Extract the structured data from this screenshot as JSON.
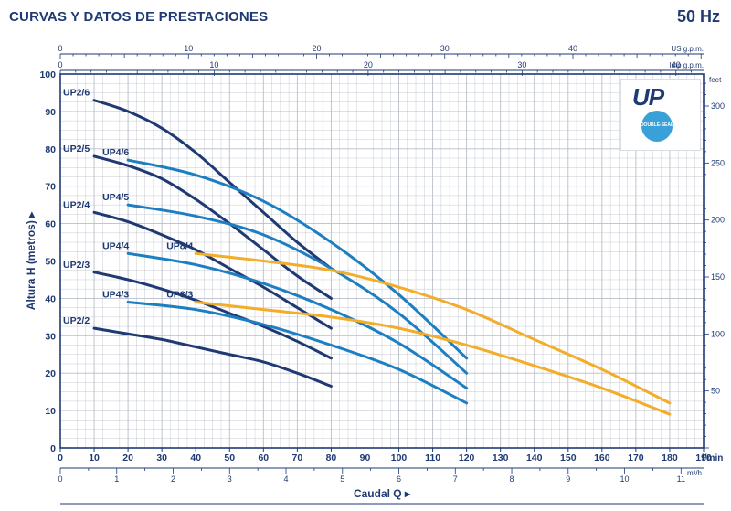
{
  "header": {
    "title": "CURVAS Y DATOS DE PRESTACIONES",
    "frequency": "50 Hz"
  },
  "logo": {
    "brand": "UP",
    "badge": "DOUBLE-SEAL"
  },
  "chart_data": {
    "type": "line",
    "xlabel": "Caudal Q",
    "ylabel": "Altura H (metros)",
    "xlim": [
      0,
      190
    ],
    "ylim": [
      0,
      100
    ],
    "x_ticks": [
      0,
      10,
      20,
      30,
      40,
      50,
      60,
      70,
      80,
      90,
      100,
      110,
      120,
      130,
      140,
      150,
      160,
      170,
      180,
      190
    ],
    "x_unit": "l/min",
    "y_ticks": [
      10,
      20,
      30,
      40,
      50,
      60,
      70,
      80,
      90,
      100
    ],
    "secondary_axes": {
      "usgpm": {
        "unit": "US g.p.m.",
        "ticks": [
          0,
          10,
          20,
          30,
          40
        ]
      },
      "impgpm": {
        "unit": "Imp g.p.m.",
        "ticks": [
          0,
          10,
          20,
          30,
          40
        ]
      },
      "m3h": {
        "unit": "m³/h",
        "ticks": [
          0,
          1,
          2,
          3,
          4,
          5,
          6,
          7,
          8,
          9,
          10,
          11
        ]
      },
      "feet": {
        "unit": "feet",
        "ticks": [
          50,
          100,
          150,
          200,
          250,
          300
        ]
      }
    },
    "colors": {
      "UP2": "#1f3a73",
      "UP4": "#1d7fc1",
      "UP8": "#f2ad2a",
      "axis": "#1f3a73",
      "grid": "#b9bec9"
    },
    "series": [
      {
        "name": "UP2/6",
        "family": "UP2",
        "x": [
          10,
          20,
          30,
          40,
          50,
          60,
          70,
          80
        ],
        "y": [
          93,
          90,
          85.5,
          79,
          71,
          63,
          55,
          48
        ]
      },
      {
        "name": "UP2/5",
        "family": "UP2",
        "x": [
          10,
          20,
          30,
          40,
          50,
          60,
          70,
          80
        ],
        "y": [
          78,
          75.5,
          72,
          66.5,
          60,
          53,
          46,
          40
        ]
      },
      {
        "name": "UP2/4",
        "family": "UP2",
        "x": [
          10,
          20,
          30,
          40,
          50,
          60,
          70,
          80
        ],
        "y": [
          63,
          60.5,
          57,
          53,
          48,
          43,
          37.5,
          32
        ]
      },
      {
        "name": "UP2/3",
        "family": "UP2",
        "x": [
          10,
          20,
          30,
          40,
          50,
          60,
          70,
          80
        ],
        "y": [
          47,
          45,
          42.5,
          39.5,
          36,
          32.5,
          28.5,
          24
        ]
      },
      {
        "name": "UP2/2",
        "family": "UP2",
        "x": [
          10,
          20,
          30,
          40,
          50,
          60,
          70,
          80
        ],
        "y": [
          32,
          30.5,
          29,
          27,
          25,
          23,
          20,
          16.5
        ]
      },
      {
        "name": "UP4/6",
        "family": "UP4",
        "x": [
          20,
          40,
          60,
          80,
          100,
          120
        ],
        "y": [
          77,
          73,
          66,
          55,
          41,
          24
        ]
      },
      {
        "name": "UP4/5",
        "family": "UP4",
        "x": [
          20,
          40,
          60,
          80,
          100,
          120
        ],
        "y": [
          65,
          62,
          57,
          48,
          36,
          20
        ]
      },
      {
        "name": "UP4/4",
        "family": "UP4",
        "x": [
          20,
          40,
          60,
          80,
          100,
          120
        ],
        "y": [
          52,
          49,
          44,
          37,
          28,
          16
        ]
      },
      {
        "name": "UP4/3",
        "family": "UP4",
        "x": [
          20,
          40,
          60,
          80,
          100,
          120
        ],
        "y": [
          39,
          37,
          33,
          27.5,
          21,
          12
        ]
      },
      {
        "name": "UP8/4",
        "family": "UP8",
        "x": [
          40,
          60,
          80,
          100,
          120,
          140,
          160,
          180
        ],
        "y": [
          52,
          50,
          47.5,
          43,
          37,
          29,
          21,
          12
        ]
      },
      {
        "name": "UP8/3",
        "family": "UP8",
        "x": [
          40,
          60,
          80,
          100,
          120,
          140,
          160,
          180
        ],
        "y": [
          39,
          37,
          35,
          32,
          27.5,
          22,
          16,
          9
        ]
      }
    ]
  }
}
